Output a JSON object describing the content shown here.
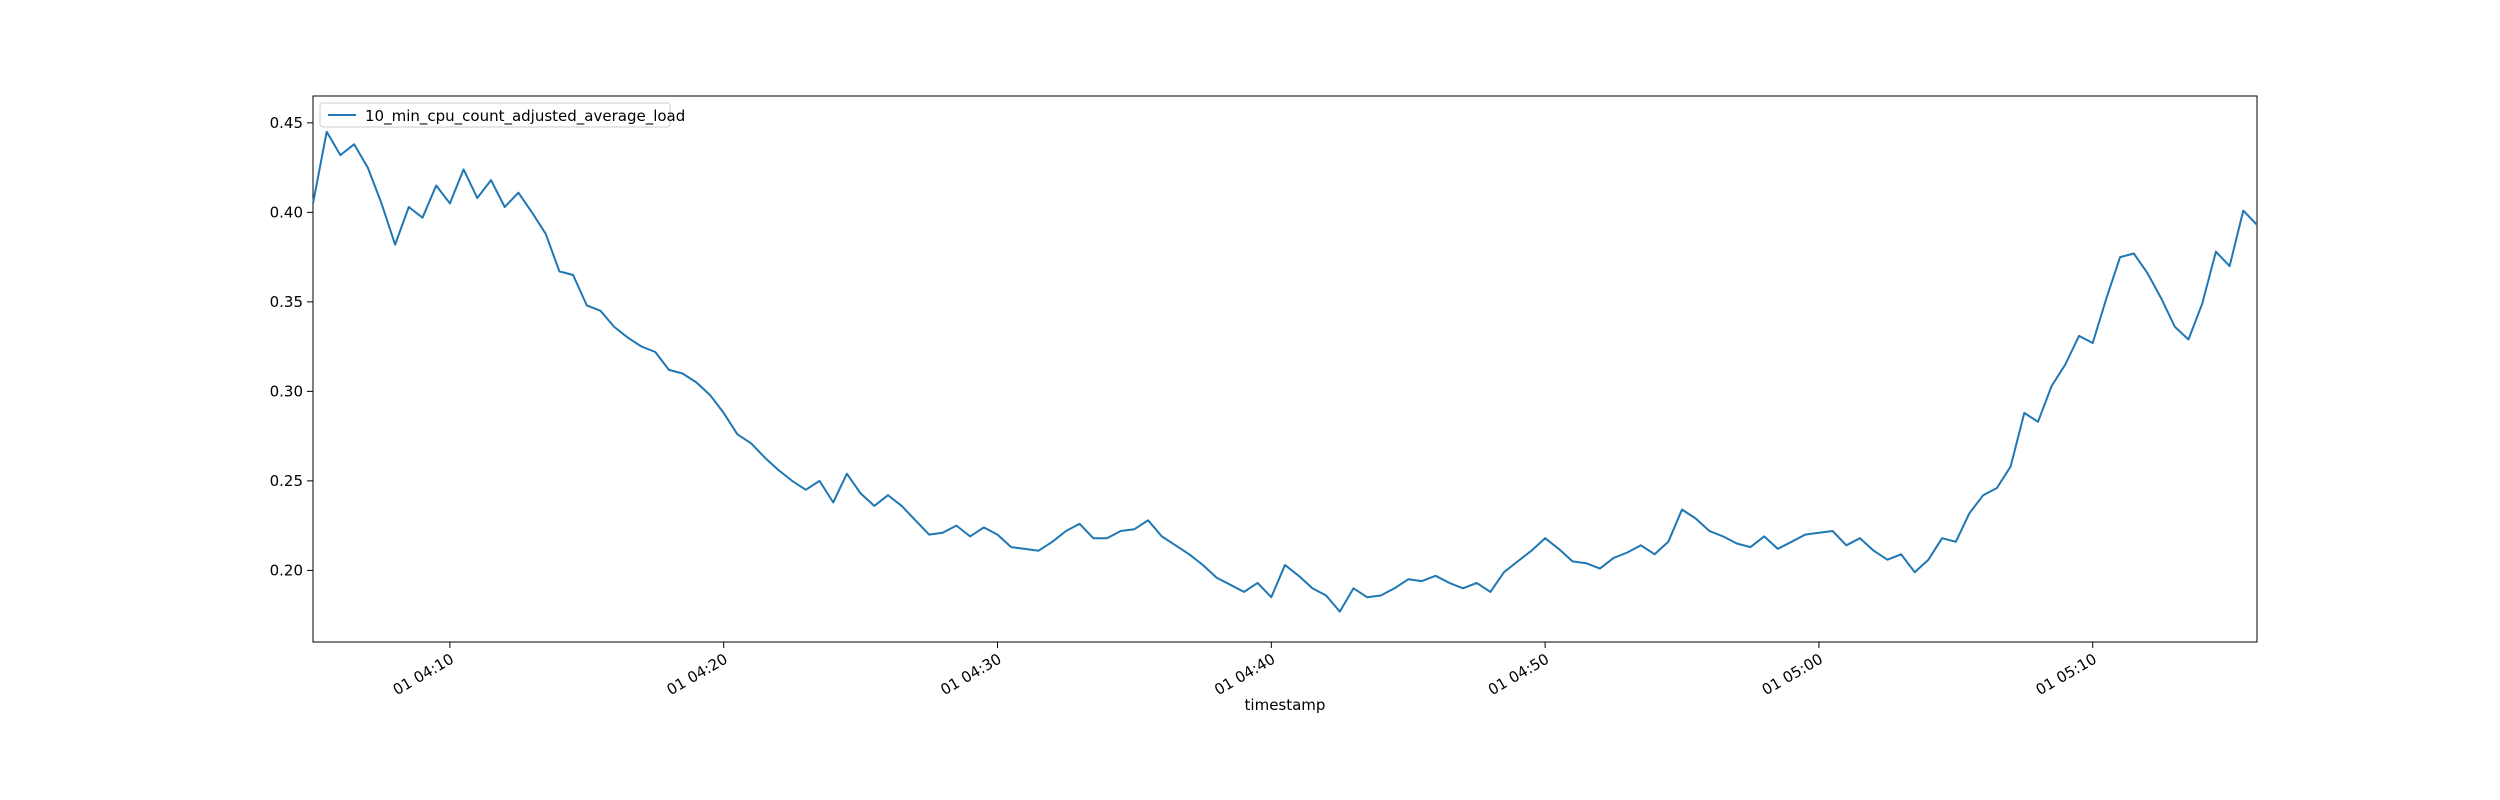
{
  "chart_data": {
    "type": "line",
    "title": "",
    "xlabel": "timestamp",
    "ylabel": "",
    "grid": false,
    "legend_position": "top-left",
    "x_start": "01 04:05",
    "x_end": "01 05:16",
    "xlim": [
      "01 04:05",
      "01 05:16"
    ],
    "ylim": [
      0.16,
      0.465
    ],
    "x_ticks": [
      {
        "value": "01 04:10",
        "label": "01 04:10"
      },
      {
        "value": "01 04:20",
        "label": "01 04:20"
      },
      {
        "value": "01 04:30",
        "label": "01 04:30"
      },
      {
        "value": "01 04:40",
        "label": "01 04:40"
      },
      {
        "value": "01 04:50",
        "label": "01 04:50"
      },
      {
        "value": "01 05:00",
        "label": "01 05:00"
      },
      {
        "value": "01 05:10",
        "label": "01 05:10"
      }
    ],
    "y_ticks": [
      {
        "value": 0.2,
        "label": "0.20"
      },
      {
        "value": 0.25,
        "label": "0.25"
      },
      {
        "value": 0.3,
        "label": "0.30"
      },
      {
        "value": 0.35,
        "label": "0.35"
      },
      {
        "value": 0.4,
        "label": "0.40"
      },
      {
        "value": 0.45,
        "label": "0.45"
      }
    ],
    "series": [
      {
        "name": "10_min_cpu_count_adjusted_average_load",
        "color": "#1f77b4",
        "points": [
          [
            "01 04:05",
            0.405
          ],
          [
            "01 04:05:30",
            0.445
          ],
          [
            "01 04:06",
            0.432
          ],
          [
            "01 04:06:30",
            0.438
          ],
          [
            "01 04:07",
            0.425
          ],
          [
            "01 04:07:30",
            0.405
          ],
          [
            "01 04:08",
            0.382
          ],
          [
            "01 04:08:30",
            0.403
          ],
          [
            "01 04:09",
            0.397
          ],
          [
            "01 04:09:30",
            0.415
          ],
          [
            "01 04:10",
            0.405
          ],
          [
            "01 04:10:30",
            0.424
          ],
          [
            "01 04:11",
            0.408
          ],
          [
            "01 04:11:30",
            0.418
          ],
          [
            "01 04:12",
            0.403
          ],
          [
            "01 04:12:30",
            0.411
          ],
          [
            "01 04:13",
            0.4
          ],
          [
            "01 04:13:30",
            0.388
          ],
          [
            "01 04:14",
            0.367
          ],
          [
            "01 04:14:30",
            0.365
          ],
          [
            "01 04:15",
            0.348
          ],
          [
            "01 04:15:30",
            0.345
          ],
          [
            "01 04:16",
            0.336
          ],
          [
            "01 04:16:30",
            0.33
          ],
          [
            "01 04:17",
            0.325
          ],
          [
            "01 04:17:30",
            0.322
          ],
          [
            "01 04:18",
            0.312
          ],
          [
            "01 04:18:30",
            0.31
          ],
          [
            "01 04:19",
            0.305
          ],
          [
            "01 04:19:30",
            0.298
          ],
          [
            "01 04:20",
            0.288
          ],
          [
            "01 04:20:30",
            0.276
          ],
          [
            "01 04:21",
            0.271
          ],
          [
            "01 04:21:30",
            0.263
          ],
          [
            "01 04:22",
            0.256
          ],
          [
            "01 04:22:30",
            0.25
          ],
          [
            "01 04:23",
            0.245
          ],
          [
            "01 04:23:30",
            0.25
          ],
          [
            "01 04:24",
            0.238
          ],
          [
            "01 04:24:30",
            0.254
          ],
          [
            "01 04:25",
            0.243
          ],
          [
            "01 04:25:30",
            0.236
          ],
          [
            "01 04:26",
            0.242
          ],
          [
            "01 04:26:30",
            0.236
          ],
          [
            "01 04:27",
            0.228
          ],
          [
            "01 04:27:30",
            0.22
          ],
          [
            "01 04:28",
            0.221
          ],
          [
            "01 04:28:30",
            0.225
          ],
          [
            "01 04:29",
            0.219
          ],
          [
            "01 04:29:30",
            0.224
          ],
          [
            "01 04:30",
            0.22
          ],
          [
            "01 04:30:30",
            0.213
          ],
          [
            "01 04:31",
            0.212
          ],
          [
            "01 04:31:30",
            0.211
          ],
          [
            "01 04:32",
            0.216
          ],
          [
            "01 04:32:30",
            0.222
          ],
          [
            "01 04:33",
            0.226
          ],
          [
            "01 04:33:30",
            0.218
          ],
          [
            "01 04:34",
            0.218
          ],
          [
            "01 04:34:30",
            0.222
          ],
          [
            "01 04:35",
            0.223
          ],
          [
            "01 04:35:30",
            0.228
          ],
          [
            "01 04:36",
            0.219
          ],
          [
            "01 04:36:30",
            0.214
          ],
          [
            "01 04:37",
            0.209
          ],
          [
            "01 04:37:30",
            0.203
          ],
          [
            "01 04:38",
            0.196
          ],
          [
            "01 04:38:30",
            0.192
          ],
          [
            "01 04:39",
            0.188
          ],
          [
            "01 04:39:30",
            0.193
          ],
          [
            "01 04:40",
            0.185
          ],
          [
            "01 04:40:30",
            0.203
          ],
          [
            "01 04:41",
            0.197
          ],
          [
            "01 04:41:30",
            0.19
          ],
          [
            "01 04:42",
            0.186
          ],
          [
            "01 04:42:30",
            0.177
          ],
          [
            "01 04:43",
            0.19
          ],
          [
            "01 04:43:30",
            0.185
          ],
          [
            "01 04:44",
            0.186
          ],
          [
            "01 04:44:30",
            0.19
          ],
          [
            "01 04:45",
            0.195
          ],
          [
            "01 04:45:30",
            0.194
          ],
          [
            "01 04:46",
            0.197
          ],
          [
            "01 04:46:30",
            0.193
          ],
          [
            "01 04:47",
            0.19
          ],
          [
            "01 04:47:30",
            0.193
          ],
          [
            "01 04:48",
            0.188
          ],
          [
            "01 04:48:30",
            0.199
          ],
          [
            "01 04:49",
            0.205
          ],
          [
            "01 04:49:30",
            0.211
          ],
          [
            "01 04:50",
            0.218
          ],
          [
            "01 04:50:30",
            0.212
          ],
          [
            "01 04:51",
            0.205
          ],
          [
            "01 04:51:30",
            0.204
          ],
          [
            "01 04:52",
            0.201
          ],
          [
            "01 04:52:30",
            0.207
          ],
          [
            "01 04:53",
            0.21
          ],
          [
            "01 04:53:30",
            0.214
          ],
          [
            "01 04:54",
            0.209
          ],
          [
            "01 04:54:30",
            0.216
          ],
          [
            "01 04:55",
            0.234
          ],
          [
            "01 04:55:30",
            0.229
          ],
          [
            "01 04:56",
            0.222
          ],
          [
            "01 04:56:30",
            0.219
          ],
          [
            "01 04:57",
            0.215
          ],
          [
            "01 04:57:30",
            0.213
          ],
          [
            "01 04:58",
            0.219
          ],
          [
            "01 04:58:30",
            0.212
          ],
          [
            "01 04:59",
            0.216
          ],
          [
            "01 04:59:30",
            0.22
          ],
          [
            "01 05:00",
            0.221
          ],
          [
            "01 05:00:30",
            0.222
          ],
          [
            "01 05:01",
            0.214
          ],
          [
            "01 05:01:30",
            0.218
          ],
          [
            "01 05:02",
            0.211
          ],
          [
            "01 05:02:30",
            0.206
          ],
          [
            "01 05:03",
            0.209
          ],
          [
            "01 05:03:30",
            0.199
          ],
          [
            "01 05:04",
            0.206
          ],
          [
            "01 05:04:30",
            0.218
          ],
          [
            "01 05:05",
            0.216
          ],
          [
            "01 05:05:30",
            0.232
          ],
          [
            "01 05:06",
            0.242
          ],
          [
            "01 05:06:30",
            0.246
          ],
          [
            "01 05:07",
            0.258
          ],
          [
            "01 05:07:30",
            0.288
          ],
          [
            "01 05:08",
            0.283
          ],
          [
            "01 05:08:30",
            0.303
          ],
          [
            "01 05:09",
            0.315
          ],
          [
            "01 05:09:30",
            0.331
          ],
          [
            "01 05:10",
            0.327
          ],
          [
            "01 05:10:30",
            0.352
          ],
          [
            "01 05:11",
            0.375
          ],
          [
            "01 05:11:30",
            0.377
          ],
          [
            "01 05:12",
            0.366
          ],
          [
            "01 05:12:30",
            0.352
          ],
          [
            "01 05:13",
            0.336
          ],
          [
            "01 05:13:30",
            0.329
          ],
          [
            "01 05:14",
            0.349
          ],
          [
            "01 05:14:30",
            0.378
          ],
          [
            "01 05:15",
            0.37
          ],
          [
            "01 05:15:30",
            0.401
          ],
          [
            "01 05:16",
            0.393
          ]
        ]
      }
    ]
  }
}
